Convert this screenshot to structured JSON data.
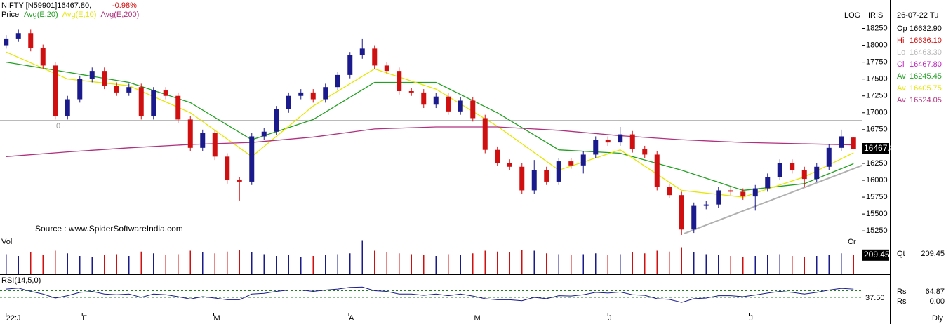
{
  "chart_data": {
    "type": "candlestick",
    "title": "NIFTY [N59901]16467.80,",
    "change": "-0.98%",
    "price_label": "Price",
    "source": "Source : www.SpiderSoftwareIndia.com",
    "up_color": "#1a1a8c",
    "down_color": "#d01010",
    "ylim": [
      15200,
      18650
    ],
    "yticks": [
      15250,
      15500,
      15750,
      16000,
      16250,
      16500,
      16750,
      17000,
      17250,
      17500,
      17750,
      18000,
      18250
    ],
    "xticks": [
      {
        "value": 0,
        "label": "22:J"
      },
      {
        "value": 6.2,
        "label": "F"
      },
      {
        "value": 16.9,
        "label": "M"
      },
      {
        "value": 27.9,
        "label": "A"
      },
      {
        "value": 38.1,
        "label": "M"
      },
      {
        "value": 49,
        "label": "J"
      },
      {
        "value": 60.5,
        "label": "J"
      }
    ],
    "hline": {
      "value": 16885,
      "label": "0"
    },
    "trendline": {
      "x": [
        55.2,
        69.7
      ],
      "y": [
        15210,
        16220
      ]
    },
    "candles": {
      "open": [
        18000,
        18100,
        18180,
        17960,
        17700,
        16950,
        17200,
        17500,
        17620,
        17400,
        17300,
        17380,
        16950,
        17330,
        17250,
        16900,
        16480,
        16700,
        16350,
        16000,
        15980,
        16650,
        16720,
        17050,
        17250,
        17300,
        17200,
        17380,
        17560,
        17850,
        17950,
        17700,
        17620,
        17320,
        17300,
        17120,
        17240,
        17020,
        17180,
        16920,
        16450,
        16260,
        16200,
        15850,
        16150,
        15980,
        16280,
        16220,
        16380,
        16600,
        16560,
        16680,
        16460,
        16380,
        15900,
        15780,
        15270,
        15620,
        15640,
        15850,
        15830,
        15760,
        15880,
        16050,
        16260,
        16150,
        16020,
        16200,
        16480,
        16632.9
      ],
      "high": [
        18150,
        18230,
        18230,
        18010,
        17750,
        17250,
        17550,
        17670,
        17670,
        17450,
        17430,
        17430,
        17380,
        17380,
        17300,
        16950,
        16750,
        16750,
        16400,
        16050,
        16700,
        16770,
        17100,
        17300,
        17350,
        17350,
        17430,
        17610,
        17900,
        18100,
        18000,
        17750,
        17670,
        17370,
        17350,
        17290,
        17290,
        17230,
        17230,
        16970,
        16500,
        16310,
        16250,
        16300,
        16200,
        16330,
        16330,
        16430,
        16650,
        16650,
        16790,
        16730,
        16510,
        16430,
        15950,
        15830,
        15670,
        15690,
        15900,
        15900,
        15880,
        15930,
        16100,
        16310,
        16310,
        16200,
        16250,
        16530,
        16750,
        16636.1
      ],
      "low": [
        17950,
        18050,
        17910,
        17650,
        16900,
        16900,
        17150,
        17450,
        17350,
        17250,
        17250,
        16900,
        16900,
        17200,
        16850,
        16430,
        16430,
        16300,
        15950,
        15700,
        15930,
        16600,
        16670,
        17000,
        17200,
        17150,
        17150,
        17330,
        17510,
        17800,
        17650,
        17570,
        17270,
        17250,
        17070,
        17070,
        16970,
        16970,
        16870,
        16400,
        16210,
        16150,
        15800,
        15800,
        15930,
        15930,
        16170,
        16100,
        16330,
        16510,
        16510,
        16410,
        16330,
        15850,
        15730,
        15190,
        15220,
        15570,
        15590,
        15780,
        15710,
        15550,
        15830,
        16000,
        16100,
        15900,
        15970,
        16150,
        16430,
        16463.3
      ],
      "close": [
        18100,
        18180,
        17960,
        17700,
        16950,
        17200,
        17500,
        17620,
        17400,
        17300,
        17380,
        16950,
        17330,
        17250,
        16900,
        16480,
        16700,
        16350,
        16000,
        15980,
        16650,
        16720,
        17050,
        17250,
        17300,
        17200,
        17380,
        17560,
        17850,
        17950,
        17700,
        17620,
        17320,
        17300,
        17120,
        17240,
        17020,
        17180,
        16920,
        16450,
        16260,
        16200,
        15850,
        16150,
        15980,
        16280,
        16220,
        16380,
        16600,
        16560,
        16680,
        16460,
        16380,
        15900,
        15780,
        15270,
        15620,
        15640,
        15850,
        15830,
        15760,
        15880,
        16050,
        16260,
        16150,
        16020,
        16200,
        16480,
        16650,
        16467.8
      ]
    },
    "series": [
      {
        "name": "Avg(E,20)",
        "info_label": "Av",
        "color": "#22a022",
        "x": [
          0,
          5,
          10,
          15,
          20,
          25,
          30,
          35,
          40,
          45,
          50,
          55,
          60,
          65,
          69
        ],
        "values": [
          17750,
          17600,
          17450,
          17150,
          16600,
          16900,
          17450,
          17450,
          17000,
          16450,
          16400,
          16150,
          15850,
          15950,
          16245.45
        ]
      },
      {
        "name": "Avg(E,10)",
        "info_label": "Av",
        "color": "#e6e600",
        "x": [
          0,
          5,
          10,
          15,
          20,
          25,
          30,
          35,
          40,
          45,
          50,
          55,
          60,
          65,
          69
        ],
        "values": [
          17900,
          17500,
          17400,
          17000,
          16350,
          17100,
          17650,
          17350,
          16800,
          16150,
          16450,
          15850,
          15750,
          16050,
          16405.75
        ]
      },
      {
        "name": "Avg(E,200)",
        "info_label": "Av",
        "color": "#b03080",
        "x": [
          0,
          5,
          10,
          15,
          20,
          25,
          30,
          35,
          40,
          45,
          50,
          55,
          60,
          65,
          69
        ],
        "values": [
          16350,
          16420,
          16480,
          16530,
          16560,
          16640,
          16760,
          16790,
          16790,
          16740,
          16660,
          16600,
          16560,
          16540,
          16524.05
        ]
      }
    ],
    "volume": {
      "label": "Vol",
      "corner": "Cr",
      "info_label": "Qt",
      "ylim": [
        0,
        400
      ],
      "values": [
        220,
        200,
        240,
        210,
        260,
        230,
        200,
        190,
        210,
        220,
        200,
        250,
        230,
        210,
        220,
        260,
        240,
        230,
        250,
        270,
        240,
        220,
        200,
        210,
        190,
        200,
        210,
        220,
        230,
        380,
        260,
        240,
        230,
        220,
        210,
        200,
        220,
        210,
        230,
        260,
        250,
        240,
        270,
        260,
        230,
        220,
        210,
        220,
        230,
        210,
        220,
        240,
        230,
        260,
        250,
        300,
        240,
        220,
        210,
        200,
        190,
        200,
        210,
        220,
        200,
        190,
        200,
        210,
        230,
        209.45
      ]
    },
    "rsi": {
      "label": "RSI(14,5,0)",
      "info_label": "Rs",
      "info_label2": "Rs",
      "info_value2": "0.00",
      "ylim": [
        0,
        100
      ],
      "levels": [
        40,
        60
      ],
      "ticks": [
        {
          "value": 37.5,
          "label": "37.50"
        }
      ],
      "values": [
        65,
        68,
        58,
        50,
        38,
        45,
        55,
        58,
        50,
        48,
        50,
        40,
        50,
        48,
        42,
        35,
        42,
        38,
        33,
        33,
        50,
        52,
        58,
        62,
        62,
        58,
        62,
        65,
        70,
        71,
        60,
        58,
        50,
        50,
        46,
        50,
        45,
        50,
        44,
        36,
        33,
        33,
        30,
        40,
        36,
        45,
        44,
        48,
        55,
        53,
        56,
        48,
        46,
        36,
        34,
        25,
        36,
        38,
        45,
        45,
        42,
        47,
        53,
        58,
        55,
        50,
        55,
        62,
        67,
        64.87
      ]
    }
  },
  "ui": {
    "log": "LOG",
    "iris": "IRIS",
    "date": "26-07-22 Tu",
    "period": "Dly",
    "info": [
      {
        "label": "Op",
        "value": "16632.90",
        "color": "#000000"
      },
      {
        "label": "Hi",
        "value": "16636.10",
        "color": "#d01010"
      },
      {
        "label": "Lo",
        "value": "16463.30",
        "color": "#b8b8b8"
      },
      {
        "label": "Cl",
        "value": "16467.80",
        "color": "#c020c0"
      }
    ]
  }
}
